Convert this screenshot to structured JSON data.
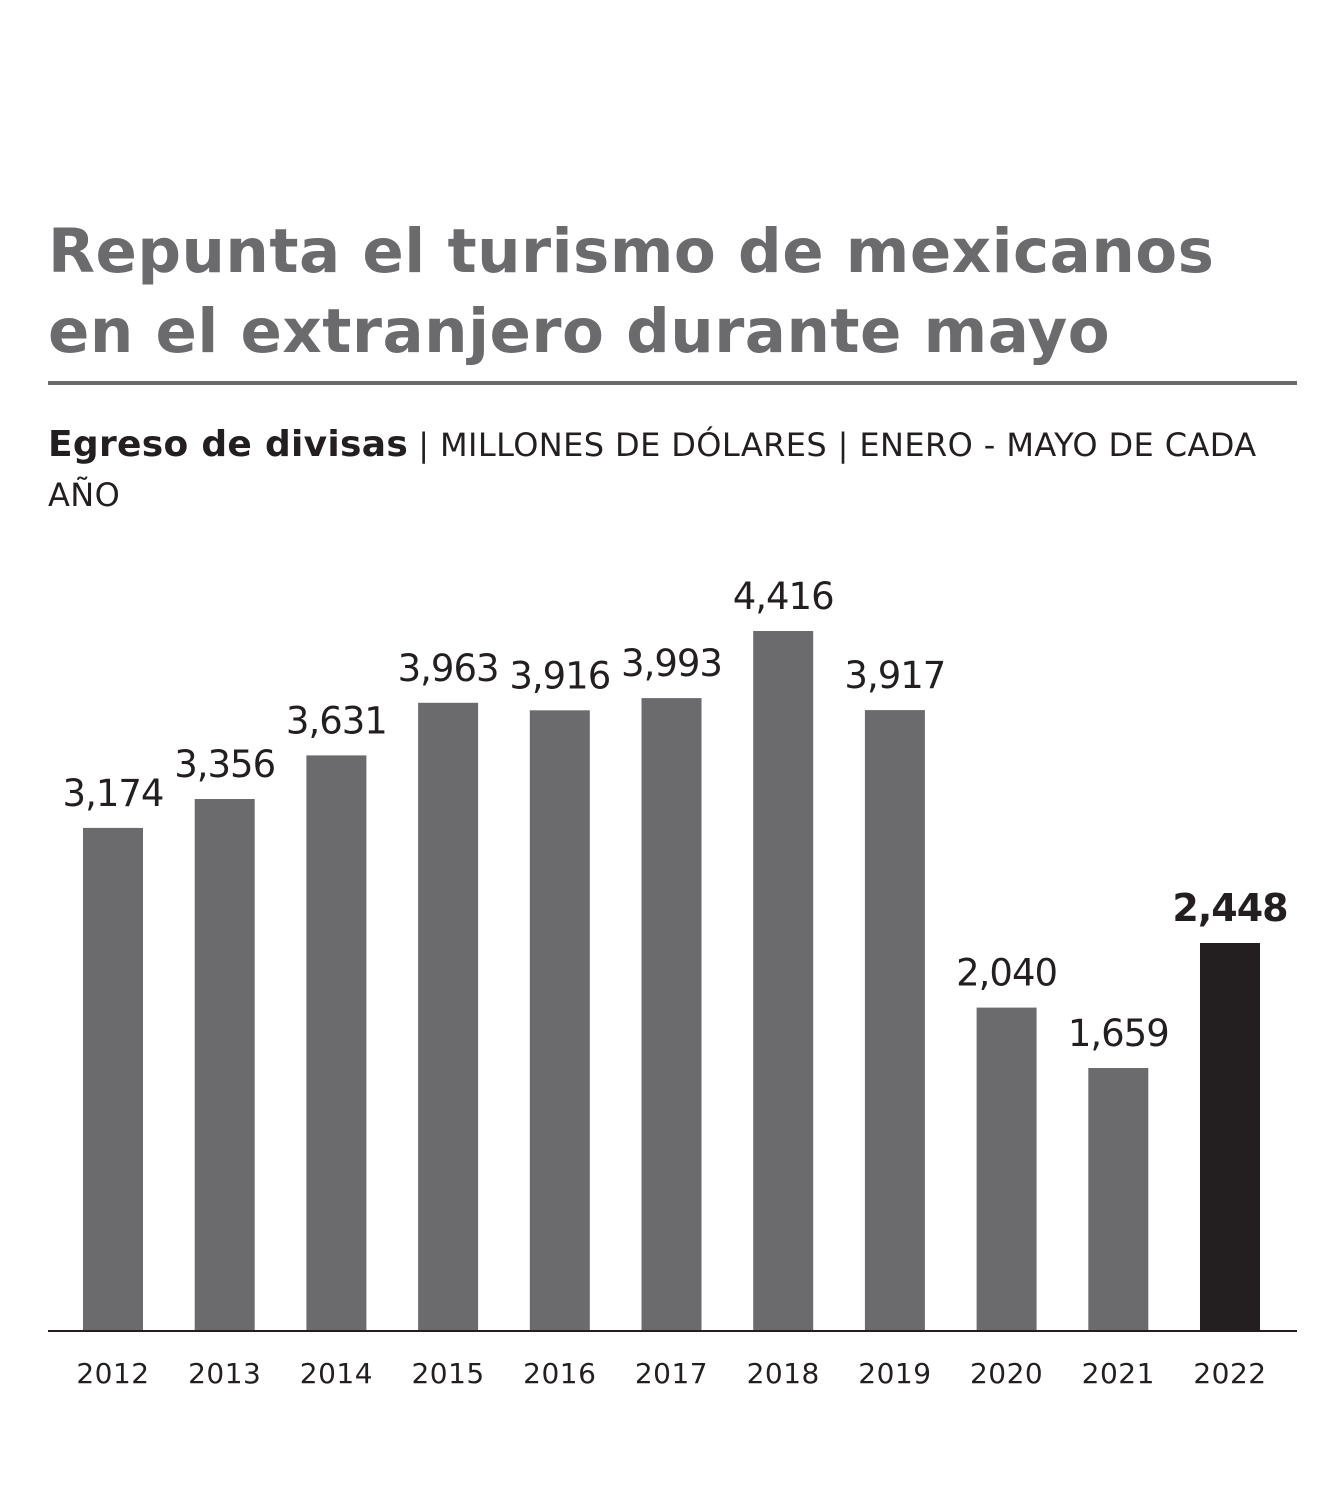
{
  "title": "Repunta el turismo de mexicanos en el extranjero durante mayo",
  "subtitle_bold": "Egreso de divisas",
  "subtitle_rest": "| MILLONES DE DÓLARES | ENERO - MAYO DE CADA AÑO",
  "colors": {
    "title": "#6b6b6e",
    "bar": "#6b6b6e",
    "highlight": "#231f20",
    "text": "#231f20",
    "rule": "#6b6b6e"
  },
  "chart_data": {
    "type": "bar",
    "title": "Egreso de divisas",
    "ylabel": "MILLONES DE DÓLARES",
    "xlabel": "",
    "ylim": [
      0,
      4900
    ],
    "grid": false,
    "categories": [
      "2012",
      "2013",
      "2014",
      "2015",
      "2016",
      "2017",
      "2018",
      "2019",
      "2020",
      "2021",
      "2022"
    ],
    "values": [
      3174,
      3356,
      3631,
      3963,
      3916,
      3993,
      4416,
      3917,
      2040,
      1659,
      2448
    ],
    "value_labels": [
      "3,174",
      "3,356",
      "3,631",
      "3,963",
      "3,916",
      "3,993",
      "4,416",
      "3,917",
      "2,040",
      "1,659",
      "2,448"
    ],
    "highlight_index": 10
  }
}
